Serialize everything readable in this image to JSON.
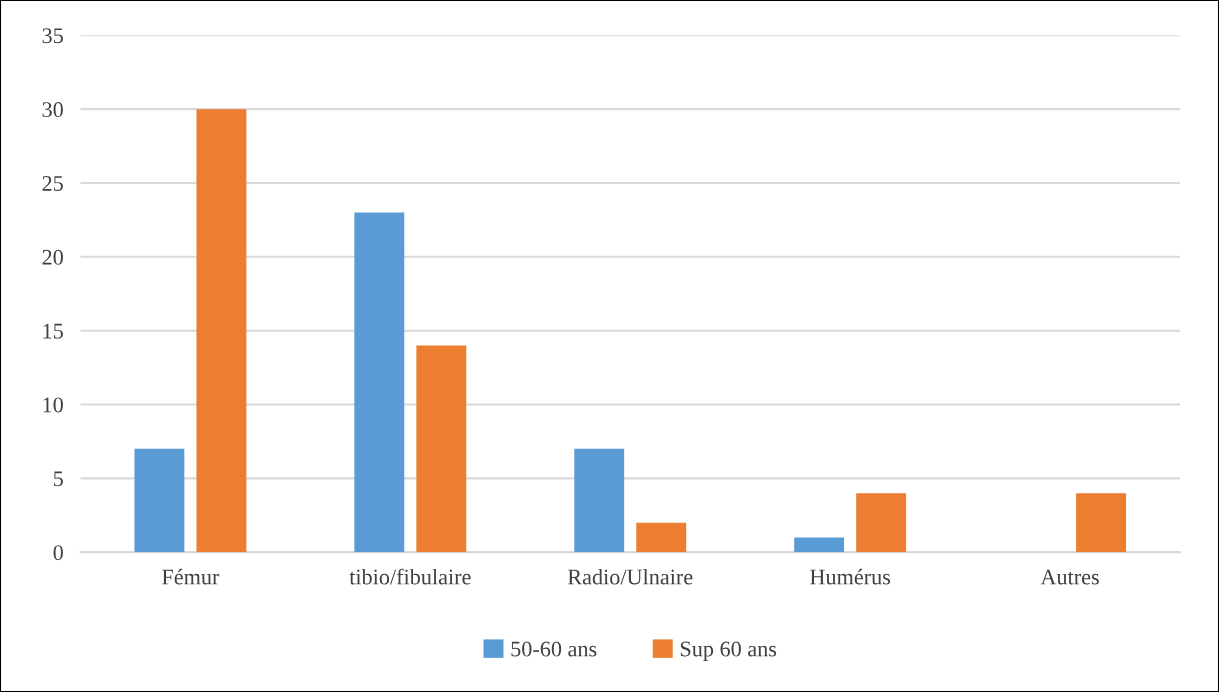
{
  "chart_data": {
    "type": "bar",
    "categories": [
      "Fémur",
      "tibio/fibulaire",
      "Radio/Ulnaire",
      "Humérus",
      "Autres"
    ],
    "series": [
      {
        "name": "50-60 ans",
        "color": "#5b9bd5",
        "values": [
          7,
          23,
          7,
          1,
          0
        ]
      },
      {
        "name": "Sup 60 ans",
        "color": "#ed7d31",
        "values": [
          30,
          14,
          2,
          4,
          4
        ]
      }
    ],
    "ylim": [
      0,
      35
    ],
    "yticks": [
      0,
      5,
      10,
      15,
      20,
      25,
      30,
      35
    ],
    "grid": "y",
    "legend": "bottom"
  }
}
